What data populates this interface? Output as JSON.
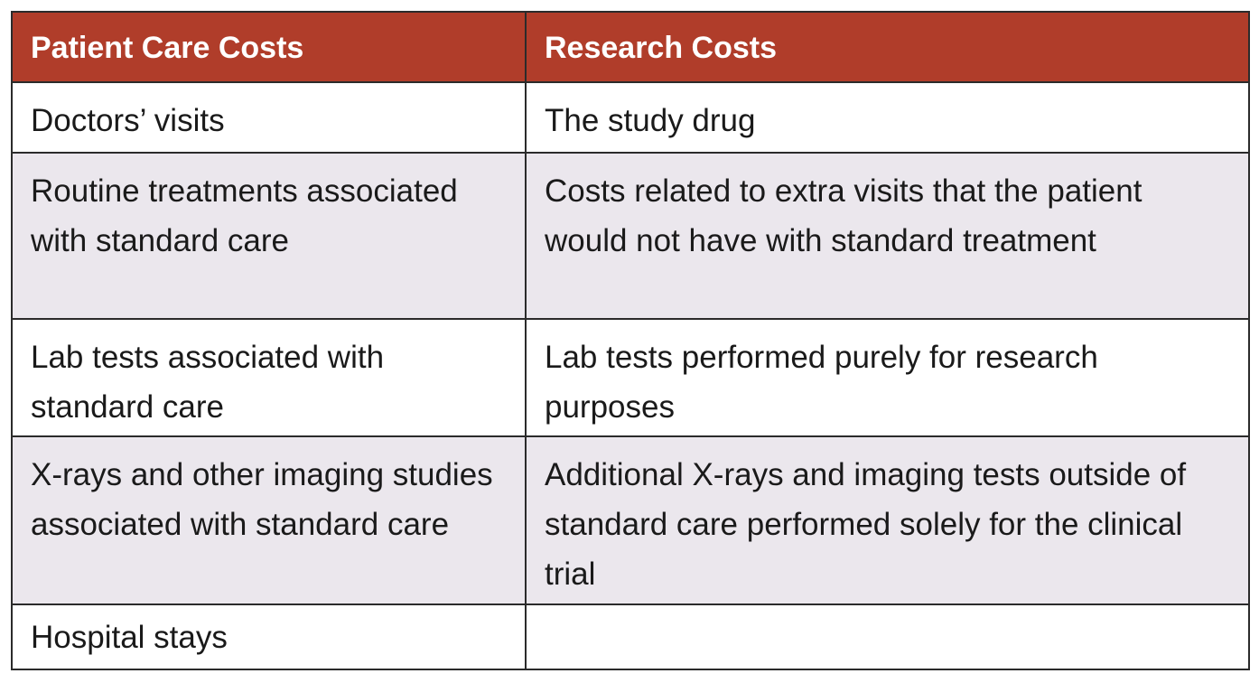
{
  "table": {
    "headers": [
      "Patient Care Costs",
      "Research Costs"
    ],
    "rows": [
      [
        "Doctors’ visits",
        "The study drug"
      ],
      [
        "Routine treatments associated with standard care",
        "Costs related to extra visits that the patient would not have with standard treatment"
      ],
      [
        "Lab tests associated with standard care",
        "Lab tests performed purely for research purposes"
      ],
      [
        "X-rays and other imaging studies associated with standard care",
        "Additional X-rays and imaging tests outside of standard care performed solely for the clinical trial"
      ],
      [
        "Hospital stays",
        ""
      ]
    ]
  },
  "colors": {
    "header_background": "#b03d2a",
    "header_text": "#ffffff",
    "alt_row_background": "#ebe7ed",
    "border": "#2b2b2b"
  }
}
